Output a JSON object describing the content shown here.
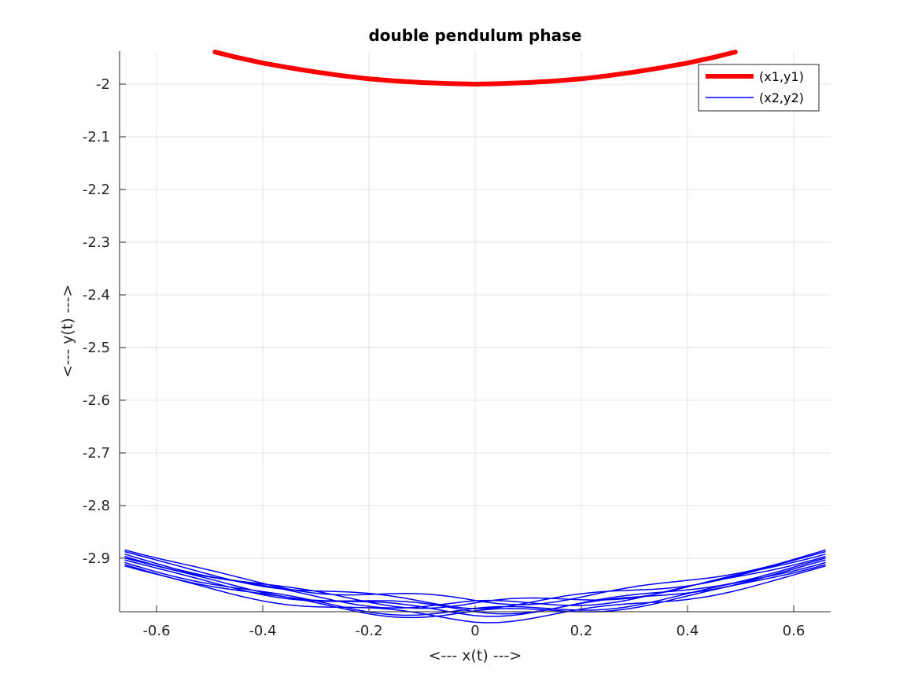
{
  "chart_data": {
    "type": "line",
    "title": "double pendulum phase",
    "xlabel": "<--- x(t) --->",
    "ylabel": "<--- y(t) --->",
    "xlim": [
      -0.66,
      0.66
    ],
    "ylim": [
      -3.0,
      -1.94
    ],
    "xticks": [
      -0.6,
      -0.4,
      -0.2,
      0,
      0.2,
      0.4,
      0.6
    ],
    "xtick_labels": [
      "-0.6",
      "-0.4",
      "-0.2",
      "0",
      "0.2",
      "0.4",
      "0.6"
    ],
    "yticks": [
      -2,
      -2.1,
      -2.2,
      -2.3,
      -2.4,
      -2.5,
      -2.6,
      -2.7,
      -2.8,
      -2.9
    ],
    "ytick_labels": [
      "-2",
      "-2.1",
      "-2.2",
      "-2.3",
      "-2.4",
      "-2.5",
      "-2.6",
      "-2.7",
      "-2.8",
      "-2.9"
    ],
    "grid": true,
    "legend_position": "top-right",
    "series": [
      {
        "name": "(x1,y1)",
        "color": "#ff0000",
        "style": "thick",
        "description_range": {
          "x": [
            -0.49,
            0.49
          ],
          "y_min": -2.0,
          "y_ends": -1.94
        },
        "x": [
          -0.49,
          -0.45,
          -0.4,
          -0.35,
          -0.3,
          -0.25,
          -0.2,
          -0.15,
          -0.1,
          -0.05,
          0,
          0.05,
          0.1,
          0.15,
          0.2,
          0.25,
          0.3,
          0.35,
          0.4,
          0.45,
          0.49
        ],
        "y": [
          -1.939,
          -1.949,
          -1.96,
          -1.969,
          -1.977,
          -1.984,
          -1.99,
          -1.994,
          -1.997,
          -1.999,
          -2.0,
          -1.999,
          -1.997,
          -1.994,
          -1.99,
          -1.984,
          -1.977,
          -1.969,
          -1.96,
          -1.949,
          -1.939
        ]
      },
      {
        "name": "(x2,y2)",
        "color": "#0000ff",
        "style": "thin",
        "x_extent": [
          -0.66,
          0.66
        ],
        "y_extent": [
          -2.995,
          -2.89
        ],
        "loops": 9
      }
    ]
  }
}
